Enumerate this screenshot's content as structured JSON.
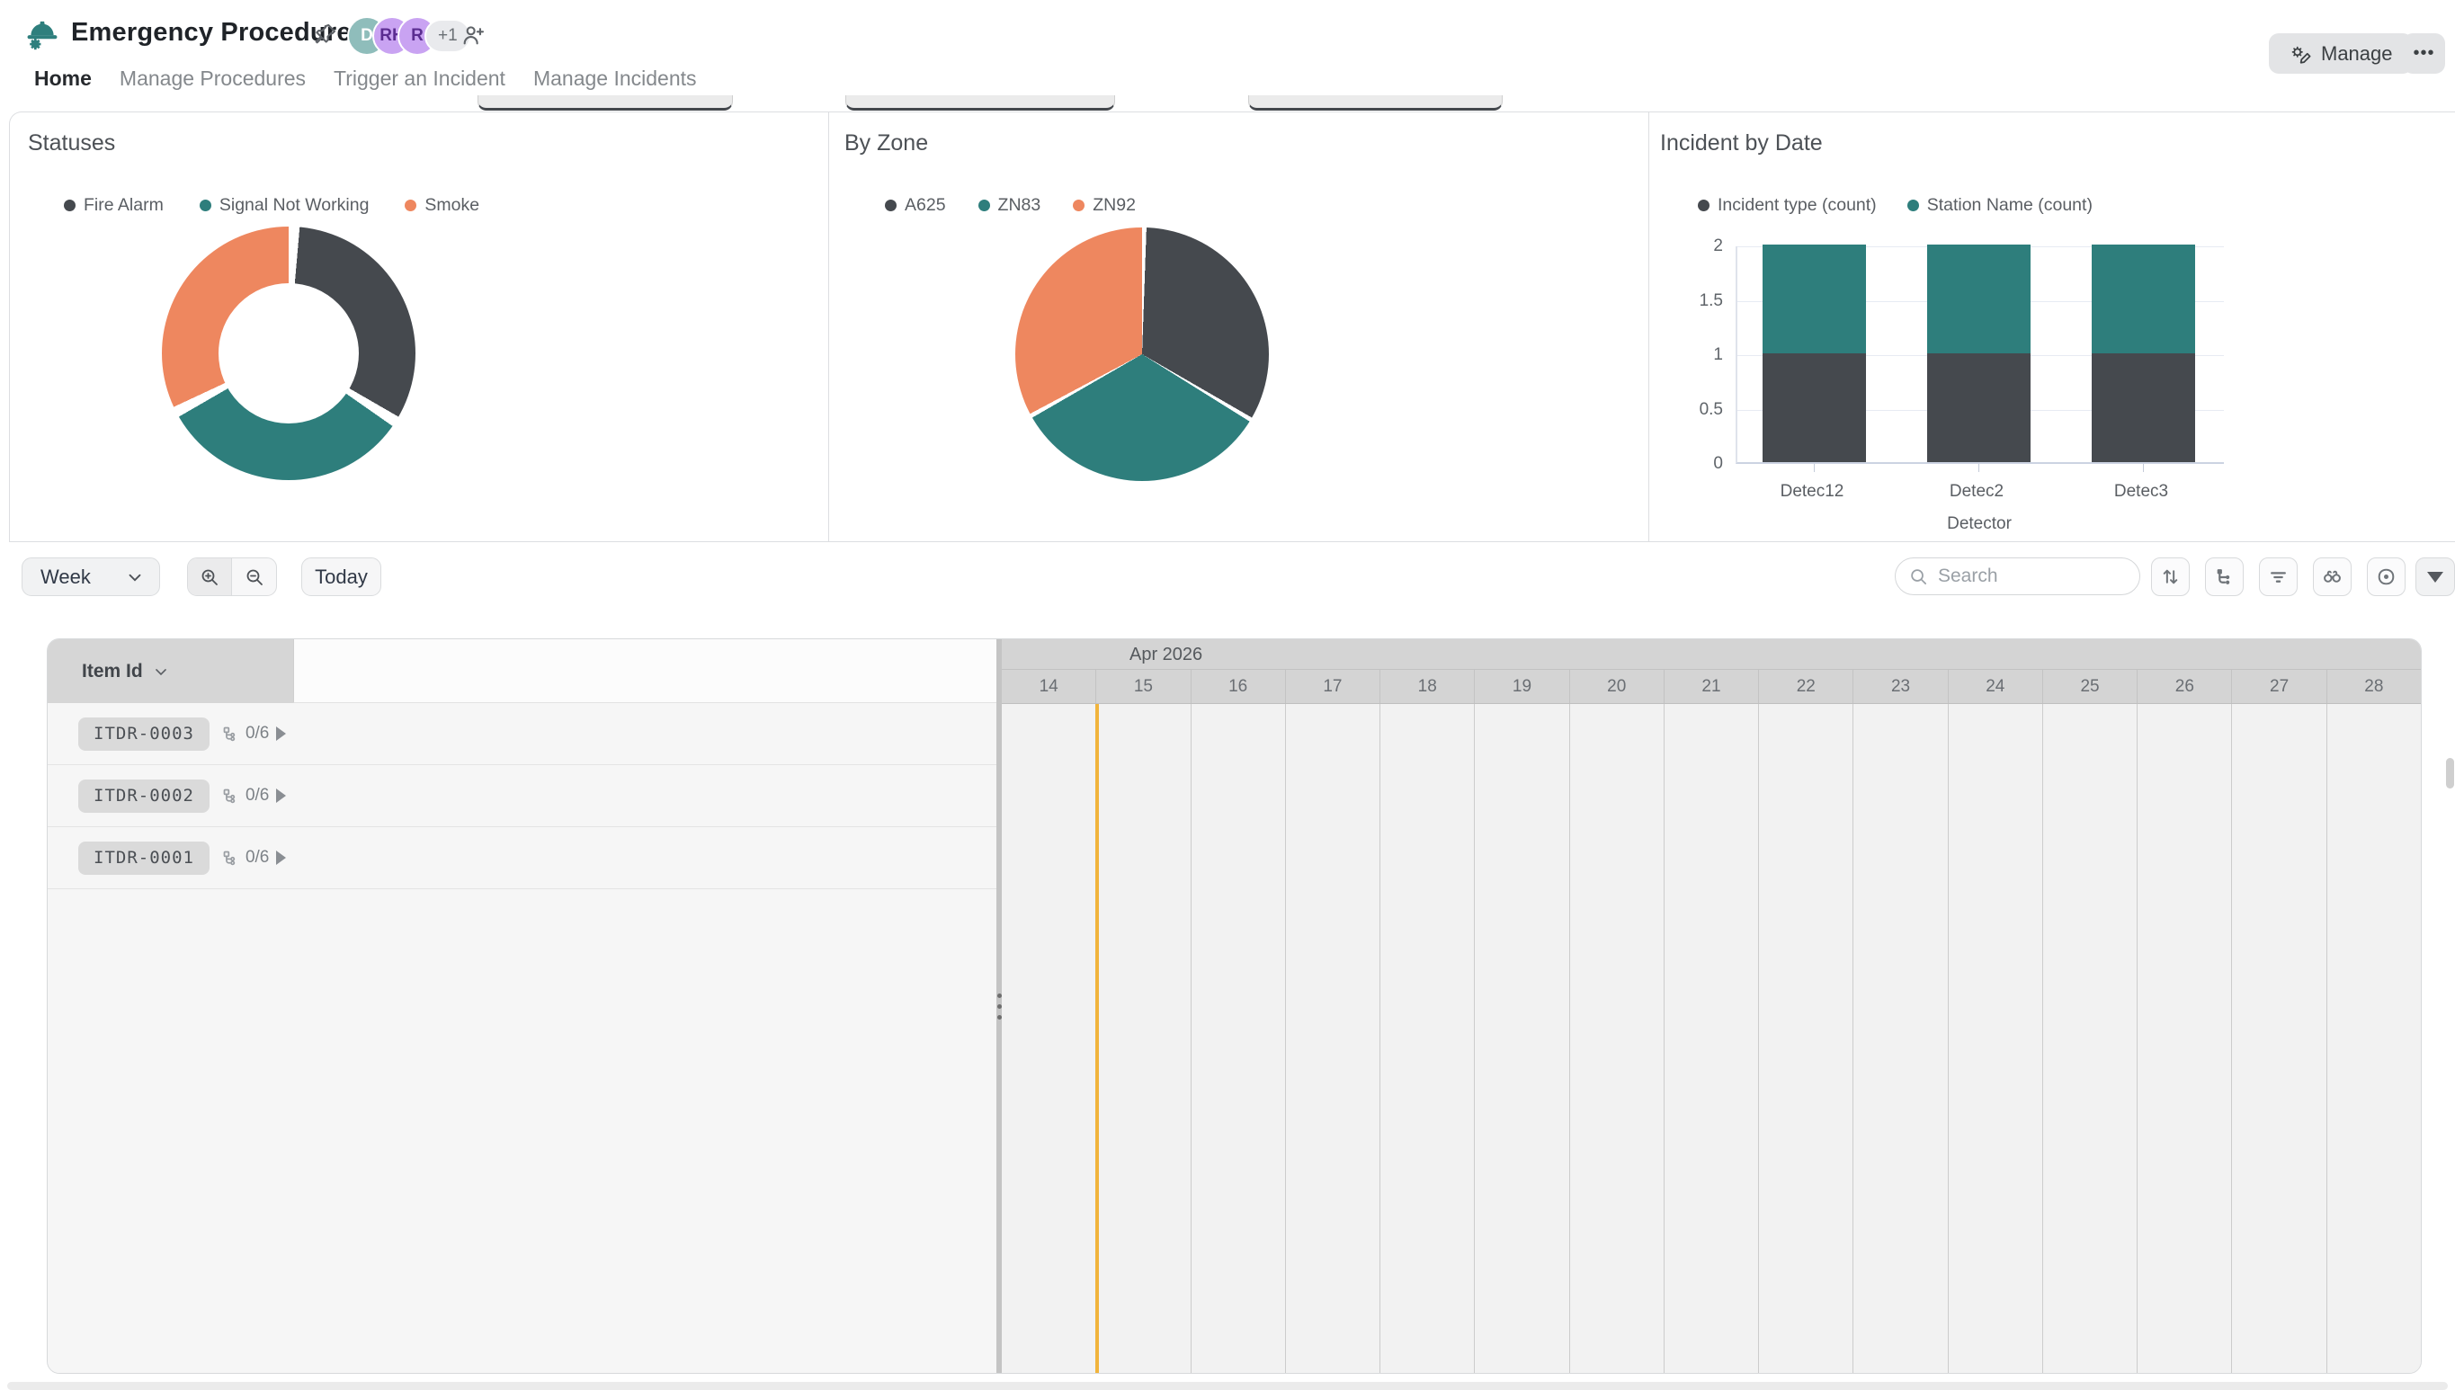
{
  "header": {
    "title": "Emergency Procedures",
    "collaborators": [
      {
        "initials": "D",
        "color_class": "teal"
      },
      {
        "initials": "RH",
        "color_class": "purple"
      },
      {
        "initials": "R",
        "color_class": "purple"
      }
    ],
    "overflow_count": "+1",
    "manage_label": "Manage",
    "more_label": "•••",
    "nav_items": [
      {
        "label": "Home",
        "active": true
      },
      {
        "label": "Manage Procedures",
        "active": false
      },
      {
        "label": "Trigger an Incident",
        "active": false
      },
      {
        "label": "Manage Incidents",
        "active": false
      }
    ]
  },
  "chart_data": [
    {
      "type": "donut",
      "title": "Statuses",
      "labels": [
        "Fire Alarm",
        "Signal Not Working",
        "Smoke"
      ],
      "values": [
        1,
        1,
        1
      ],
      "colors": [
        "#45494E",
        "#2E7E7C",
        "#EE875F"
      ],
      "legend_position": "top"
    },
    {
      "type": "pie",
      "title": "By Zone",
      "labels": [
        "A625",
        "ZN83",
        "ZN92"
      ],
      "values": [
        1,
        1,
        1
      ],
      "colors": [
        "#45494E",
        "#2E7E7C",
        "#EE875F"
      ],
      "legend_position": "top"
    },
    {
      "type": "stacked-bar",
      "title": "Incident by Date",
      "categories": [
        "Detec12",
        "Detec2",
        "Detec3"
      ],
      "series": [
        {
          "name": "Incident type (count)",
          "values": [
            1,
            1,
            1
          ],
          "color": "#45494E"
        },
        {
          "name": "Station Name (count)",
          "values": [
            1,
            1,
            1
          ],
          "color": "#2E7E7C"
        }
      ],
      "xlabel": "Detector",
      "ylim": [
        0,
        2
      ],
      "yticks": [
        0,
        0.5,
        1,
        1.5,
        2
      ],
      "grid": true,
      "legend_position": "top"
    }
  ],
  "toolbar": {
    "range_selector_value": "Week",
    "today_label": "Today",
    "search_placeholder": "Search"
  },
  "gantt": {
    "column_header": "Item Id",
    "rows": [
      {
        "id": "ITDR-0003",
        "progress": "0/6"
      },
      {
        "id": "ITDR-0002",
        "progress": "0/6"
      },
      {
        "id": "ITDR-0001",
        "progress": "0/6"
      }
    ],
    "month_label": "Apr 2026",
    "days": [
      14,
      15,
      16,
      17,
      18,
      19,
      20,
      21,
      22,
      23,
      24,
      25,
      26,
      27,
      28
    ],
    "today_day": 15
  },
  "colors": {
    "accent_teal": "#2E7E7C",
    "accent_dark": "#45494E",
    "accent_orange": "#EE875F",
    "today_line": "#F1B43C"
  }
}
